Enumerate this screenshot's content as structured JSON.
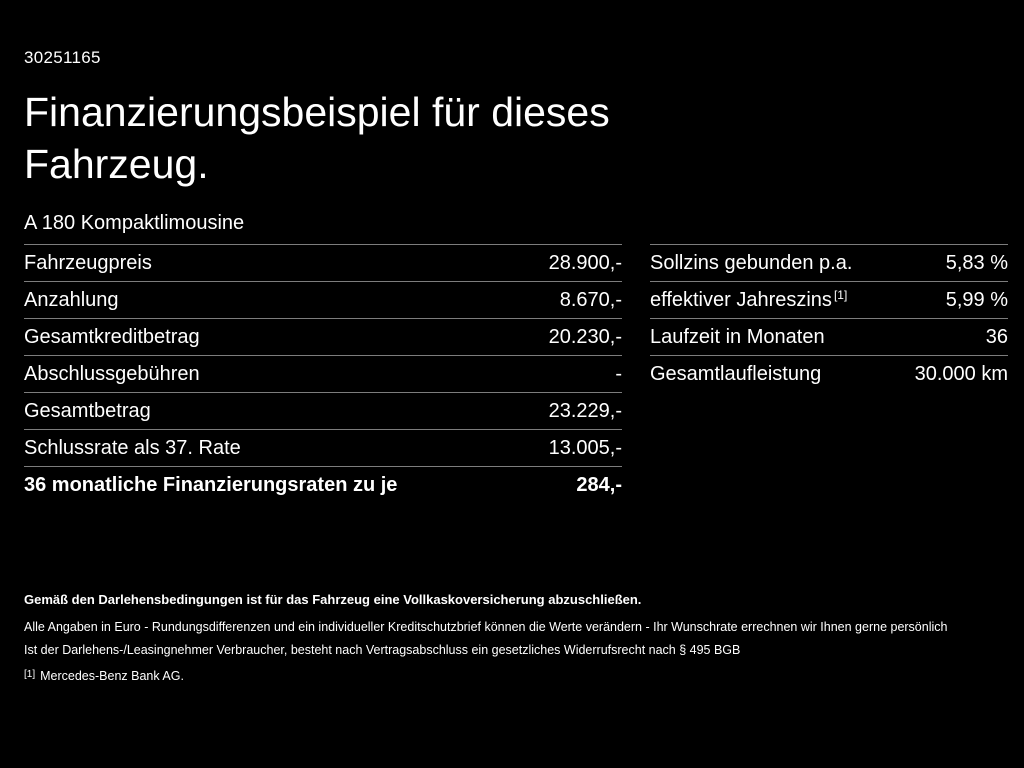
{
  "header": {
    "id_number": "30251165",
    "title_line1": "Finanzierungsbeispiel für dieses",
    "title_line2": "Fahrzeug.",
    "vehicle_model": "A 180 Kompaktlimousine"
  },
  "finance_table": {
    "rows": [
      {
        "label": "Fahrzeugpreis",
        "value": "28.900,-"
      },
      {
        "label": "Anzahlung",
        "value": "8.670,-"
      },
      {
        "label": "Gesamtkreditbetrag",
        "value": "20.230,-"
      },
      {
        "label": "Abschlussgebühren",
        "value": "-"
      },
      {
        "label": "Gesamtbetrag",
        "value": "23.229,-"
      },
      {
        "label": "Schlussrate als 37. Rate",
        "value": "13.005,-"
      },
      {
        "label": "36 monatliche Finanzierungsraten zu je",
        "value": "284,-"
      }
    ]
  },
  "conditions_table": {
    "rows": [
      {
        "label": "Sollzins gebunden p.a.",
        "value": "5,83 %"
      },
      {
        "label": "effektiver Jahreszins",
        "footnote": "[1]",
        "value": "5,99 %"
      },
      {
        "label": "Laufzeit in Monaten",
        "value": "36"
      },
      {
        "label": "Gesamtlaufleistung",
        "value": "30.000 km"
      }
    ]
  },
  "footer": {
    "insurance_note": "Gemäß den Darlehensbedingungen ist für das Fahrzeug eine Vollkaskoversicherung abzuschließen.",
    "disclaimer_line1": "Alle Angaben in Euro - Rundungsdifferenzen und ein individueller Kreditschutzbrief können die Werte verändern - Ihr Wunschrate errechnen wir Ihnen gerne persönlich",
    "disclaimer_line2": "Ist der Darlehens-/Leasingnehmer Verbraucher, besteht nach Vertragsabschluss ein gesetzliches Widerrufsrecht nach § 495 BGB",
    "footnote_marker": "[1]",
    "footnote_text": "Mercedes-Benz Bank AG."
  },
  "colors": {
    "background": "#000000",
    "text": "#ffffff",
    "divider": "#7d7d7d"
  }
}
